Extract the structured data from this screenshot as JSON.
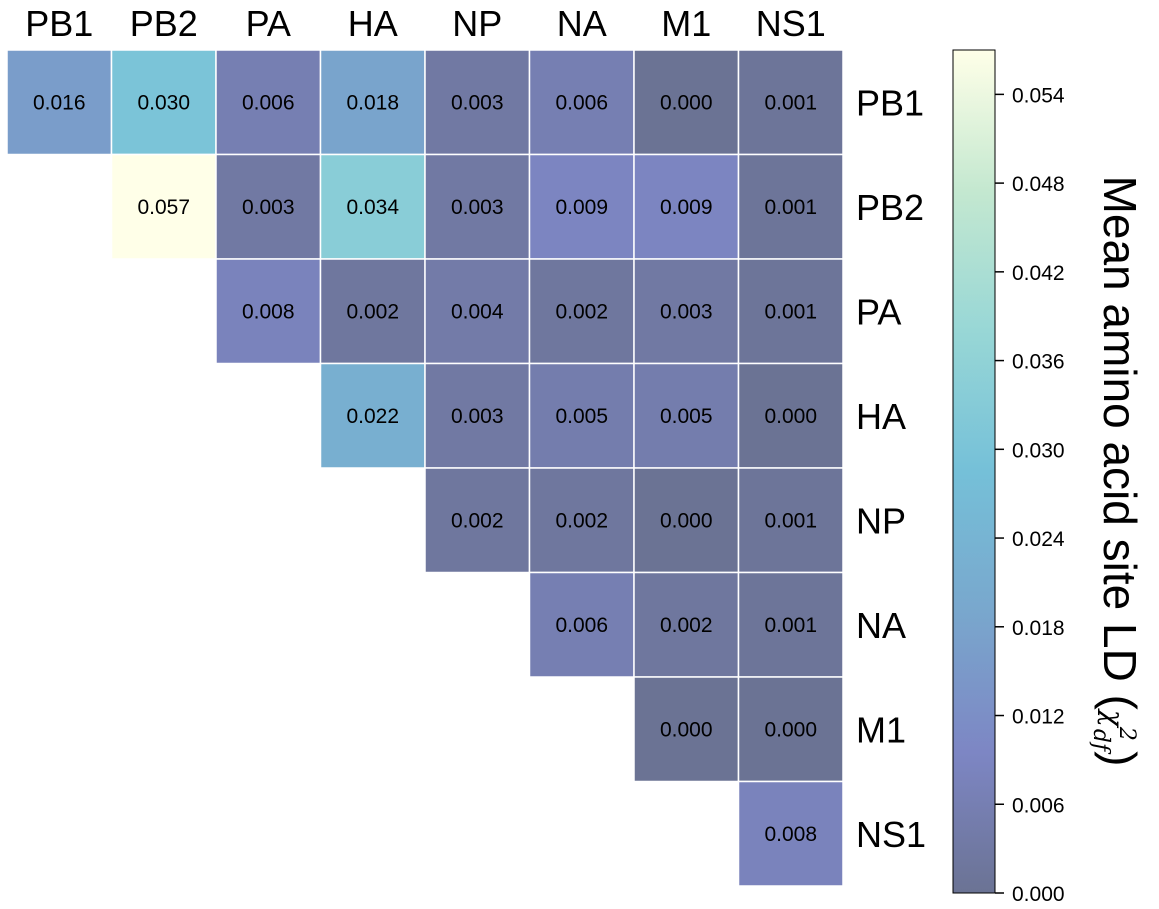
{
  "chart_data": {
    "type": "heatmap",
    "columns": [
      "PB1",
      "PB2",
      "PA",
      "HA",
      "NP",
      "NA",
      "M1",
      "NS1"
    ],
    "rows": [
      "PB1",
      "PB2",
      "PA",
      "HA",
      "NP",
      "NA",
      "M1",
      "NS1"
    ],
    "matrix": [
      [
        "0.016",
        "0.030",
        "0.006",
        "0.018",
        "0.003",
        "0.006",
        "0.000",
        "0.001"
      ],
      [
        null,
        "0.057",
        "0.003",
        "0.034",
        "0.003",
        "0.009",
        "0.009",
        "0.001"
      ],
      [
        null,
        null,
        "0.008",
        "0.002",
        "0.004",
        "0.002",
        "0.003",
        "0.001"
      ],
      [
        null,
        null,
        null,
        "0.022",
        "0.003",
        "0.005",
        "0.005",
        "0.000"
      ],
      [
        null,
        null,
        null,
        null,
        "0.002",
        "0.002",
        "0.000",
        "0.001"
      ],
      [
        null,
        null,
        null,
        null,
        null,
        "0.006",
        "0.002",
        "0.001"
      ],
      [
        null,
        null,
        null,
        null,
        null,
        null,
        "0.000",
        "0.000"
      ],
      [
        null,
        null,
        null,
        null,
        null,
        null,
        null,
        "0.008"
      ]
    ],
    "colorbar": {
      "label": "Mean amino acid site LD (",
      "label_symbol": "χ",
      "label_superscript": "2",
      "label_subscript": "df",
      "label_close": ")",
      "range": [
        0,
        0.057
      ],
      "ticks": [
        "0.000",
        "0.006",
        "0.012",
        "0.018",
        "0.024",
        "0.030",
        "0.036",
        "0.042",
        "0.048",
        "0.054"
      ],
      "colormap": [
        "#6b7394",
        "#7d86c4",
        "#79a7cd",
        "#75c0d8",
        "#98d7d6",
        "#c4e8d0",
        "#ffffe8"
      ]
    }
  }
}
